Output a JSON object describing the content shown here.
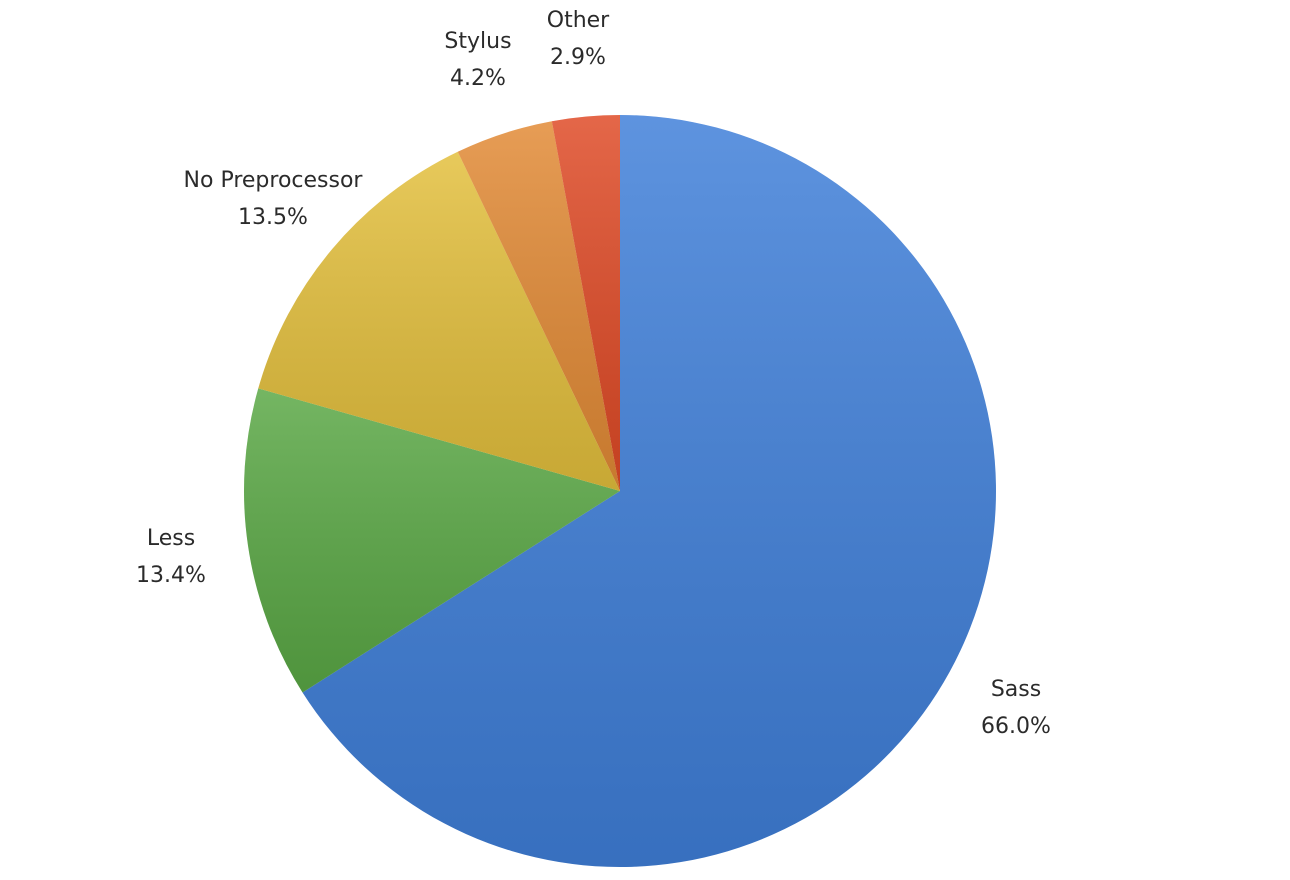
{
  "chart_data": {
    "type": "pie",
    "title": "",
    "start_angle_deg": 0,
    "direction": "clockwise",
    "slices": [
      {
        "name": "Sass",
        "value": 66.0,
        "label": "66.0%",
        "color": "#3f7fd9"
      },
      {
        "name": "Less",
        "value": 13.4,
        "label": "13.4%",
        "color": "#5aa845"
      },
      {
        "name": "No Preprocessor",
        "value": 13.5,
        "label": "13.5%",
        "color": "#e3bf3c"
      },
      {
        "name": "Stylus",
        "value": 4.2,
        "label": "4.2%",
        "color": "#e28a35"
      },
      {
        "name": "Other",
        "value": 2.9,
        "label": "2.9%",
        "color": "#df4a26"
      }
    ]
  }
}
